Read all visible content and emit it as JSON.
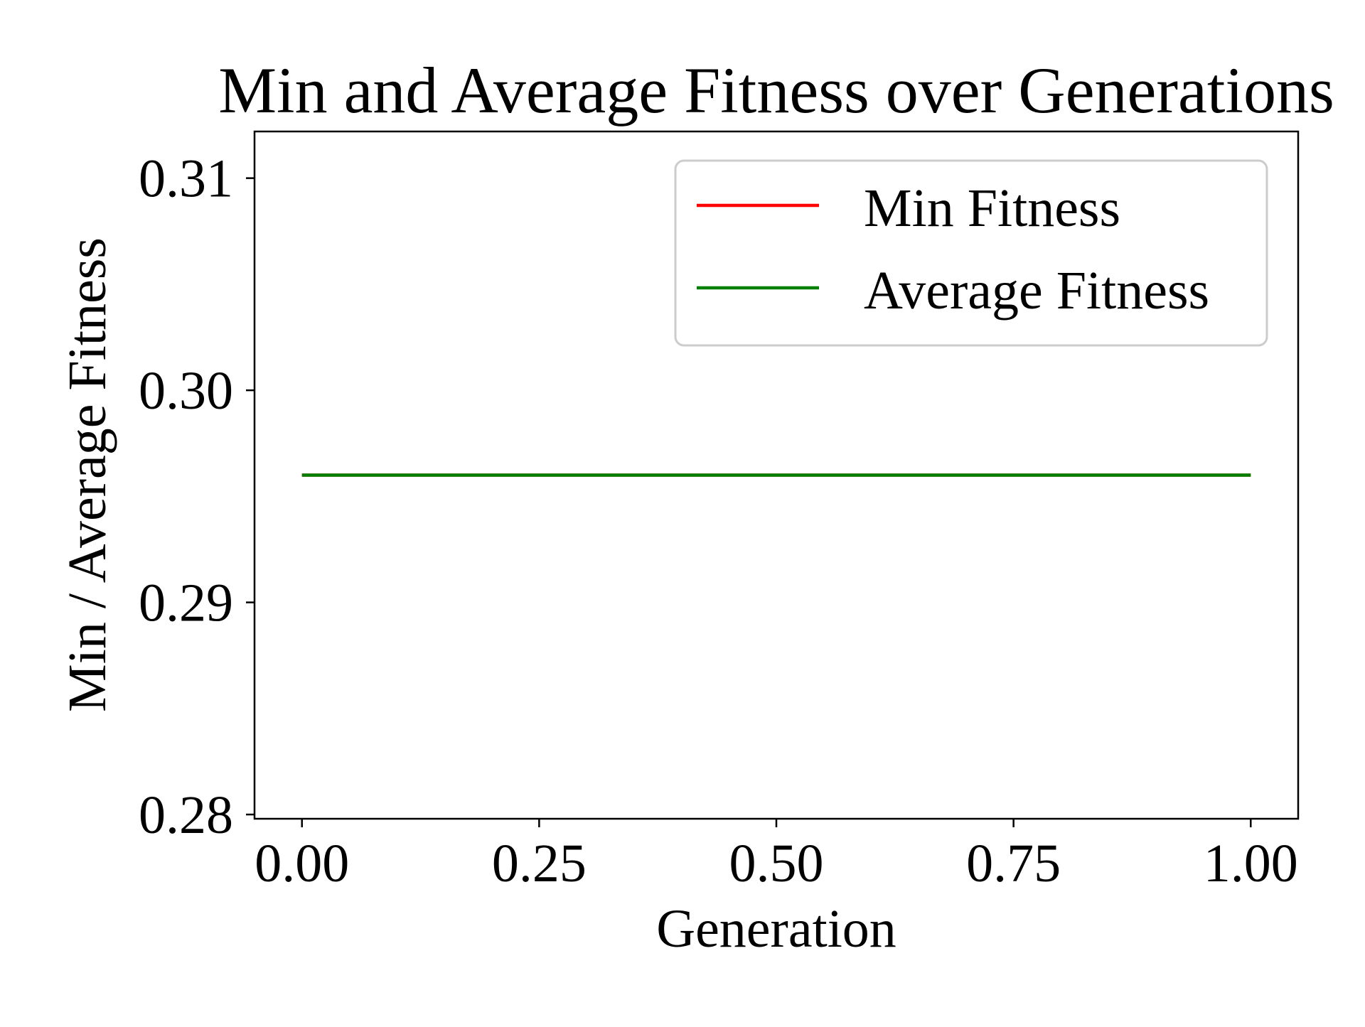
{
  "chart_data": {
    "type": "line",
    "title": "Min and Average Fitness over Generations",
    "xlabel": "Generation",
    "ylabel": "Min / Average Fitness",
    "xlim": [
      -0.05,
      1.05
    ],
    "ylim": [
      0.2798,
      0.3122
    ],
    "xticks": [
      0.0,
      0.25,
      0.5,
      0.75,
      1.0
    ],
    "xtick_labels": [
      "0.00",
      "0.25",
      "0.50",
      "0.75",
      "1.00"
    ],
    "yticks": [
      0.28,
      0.29,
      0.3,
      0.31
    ],
    "ytick_labels": [
      "0.28",
      "0.29",
      "0.30",
      "0.31"
    ],
    "grid": false,
    "legend_position": "top-right",
    "series": [
      {
        "name": "Min Fitness",
        "color": "#ff0000",
        "x": [
          0,
          1
        ],
        "y": [
          0.296,
          0.296
        ]
      },
      {
        "name": "Average Fitness",
        "color": "#008000",
        "x": [
          0,
          1
        ],
        "y": [
          0.296,
          0.296
        ]
      }
    ]
  }
}
